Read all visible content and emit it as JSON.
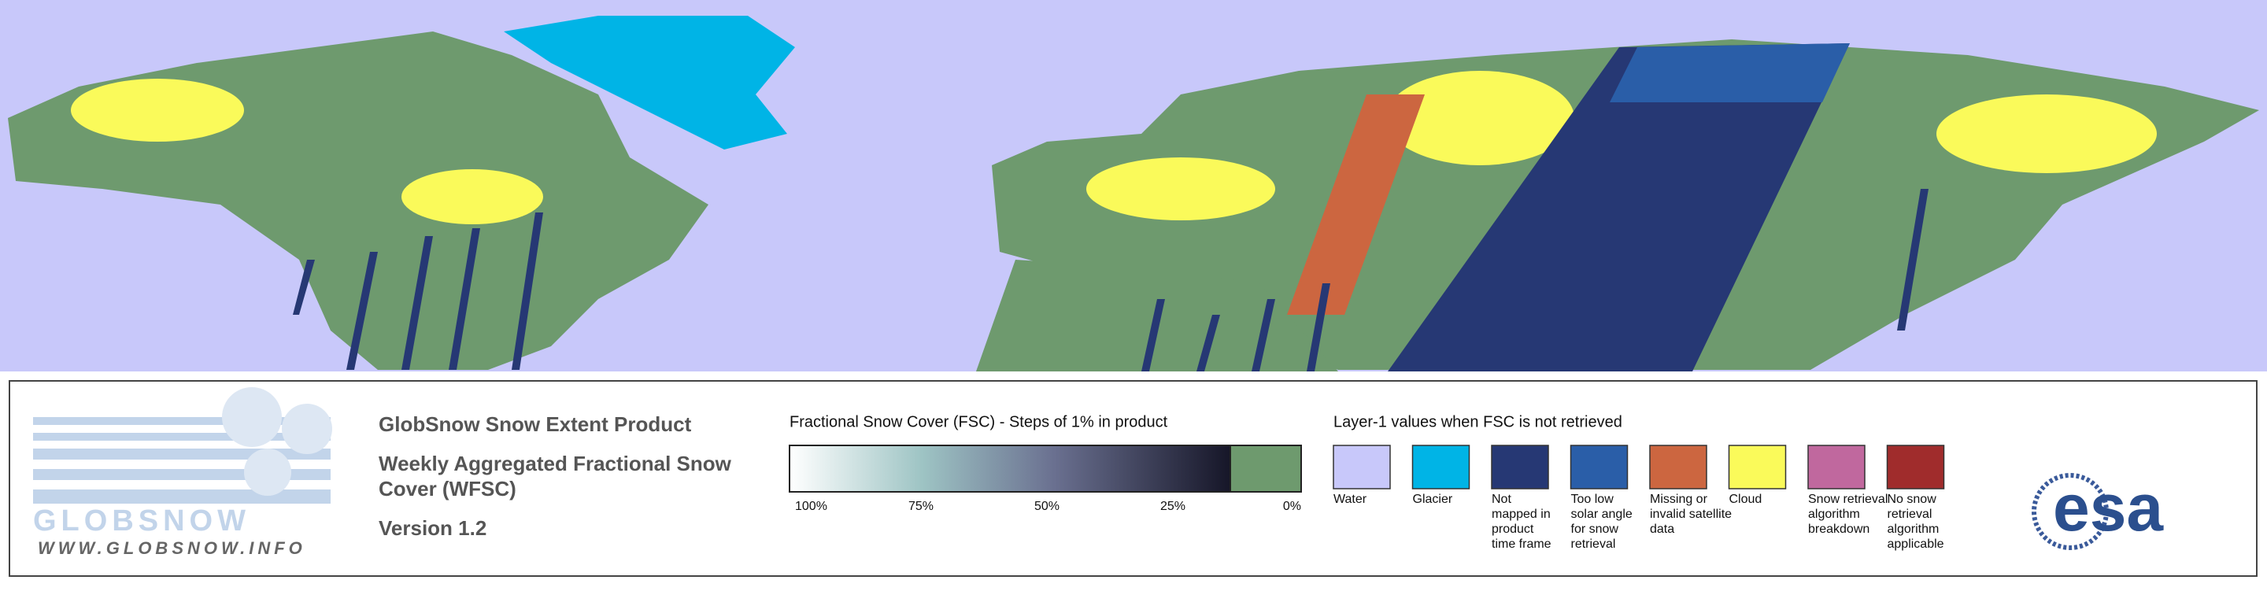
{
  "logo": {
    "brand": "GLOBSNOW",
    "url": "WWW.GLOBSNOW.INFO"
  },
  "product": {
    "title": "GlobSnow Snow Extent Product",
    "subtitle": [
      "Weekly Aggregated Fractional Snow",
      "Cover (WFSC)"
    ],
    "version": "Version 1.2"
  },
  "fsc_legend": {
    "title": "Fractional Snow Cover (FSC) - Steps of 1% in product",
    "ticks": [
      "100%",
      "75%",
      "50%",
      "25%",
      "0%"
    ]
  },
  "layer1_legend": {
    "title": "Layer-1 values when FSC is not retrieved",
    "items": [
      {
        "color": "#c8c8fa",
        "label": [
          "Water"
        ]
      },
      {
        "color": "#00b4e6",
        "label": [
          "Glacier"
        ]
      },
      {
        "color": "#263874",
        "label": [
          "Not",
          "mapped in",
          "product",
          "time frame"
        ]
      },
      {
        "color": "#2a5ea8",
        "label": [
          "Too low",
          "solar angle",
          "for snow",
          "retrieval"
        ]
      },
      {
        "color": "#cc6640",
        "label": [
          "Missing or",
          "invalid satellite",
          "data"
        ]
      },
      {
        "color": "#fafa5a",
        "label": [
          "Cloud"
        ]
      },
      {
        "color": "#c0689e",
        "label": [
          "Snow retrieval",
          "algorithm",
          "breakdown"
        ]
      },
      {
        "color": "#a02c2c",
        "label": [
          "No snow",
          "retrieval",
          "algorithm",
          "applicable"
        ]
      }
    ]
  },
  "agency": "esa"
}
